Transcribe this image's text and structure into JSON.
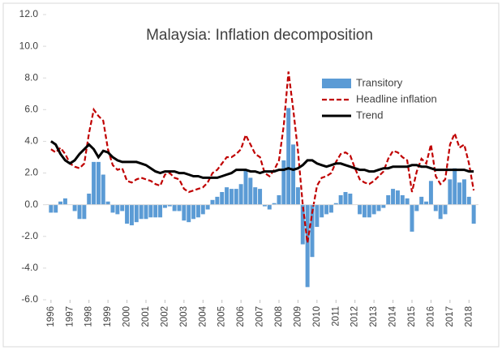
{
  "chart_data": {
    "type": "bar-line",
    "title": "Malaysia: Inflation decomposition",
    "x": [
      1996,
      1996.25,
      1996.5,
      1996.75,
      1997,
      1997.25,
      1997.5,
      1997.75,
      1998,
      1998.25,
      1998.5,
      1998.75,
      1999,
      1999.25,
      1999.5,
      1999.75,
      2000,
      2000.25,
      2000.5,
      2000.75,
      2001,
      2001.25,
      2001.5,
      2001.75,
      2002,
      2002.25,
      2002.5,
      2002.75,
      2003,
      2003.25,
      2003.5,
      2003.75,
      2004,
      2004.25,
      2004.5,
      2004.75,
      2005,
      2005.25,
      2005.5,
      2005.75,
      2006,
      2006.25,
      2006.5,
      2006.75,
      2007,
      2007.25,
      2007.5,
      2007.75,
      2008,
      2008.25,
      2008.5,
      2008.75,
      2009,
      2009.25,
      2009.5,
      2009.75,
      2010,
      2010.25,
      2010.5,
      2010.75,
      2011,
      2011.25,
      2011.5,
      2011.75,
      2012,
      2012.25,
      2012.5,
      2012.75,
      2013,
      2013.25,
      2013.5,
      2013.75,
      2014,
      2014.25,
      2014.5,
      2014.75,
      2015,
      2015.25,
      2015.5,
      2015.75,
      2016,
      2016.25,
      2016.5,
      2016.75,
      2017,
      2017.25,
      2017.5,
      2017.75,
      2018,
      2018.25
    ],
    "series": [
      {
        "name": "Transitory",
        "kind": "bar",
        "color": "#5b9bd5",
        "values": [
          -0.5,
          -0.5,
          0.2,
          0.4,
          0.0,
          -0.4,
          -0.9,
          -0.9,
          0.7,
          2.7,
          2.7,
          1.9,
          0.2,
          -0.5,
          -0.6,
          -0.4,
          -1.2,
          -1.3,
          -1.1,
          -0.9,
          -0.9,
          -0.8,
          -0.8,
          -0.8,
          -0.2,
          -0.1,
          -0.4,
          -0.4,
          -1.0,
          -1.1,
          -0.9,
          -0.8,
          -0.6,
          -0.3,
          0.3,
          0.5,
          0.8,
          1.1,
          1.0,
          1.0,
          1.3,
          2.2,
          1.7,
          1.1,
          1.0,
          -0.1,
          -0.3,
          0.1,
          0.6,
          2.8,
          6.1,
          3.8,
          1.1,
          -2.5,
          -5.2,
          -3.3,
          -1.4,
          -0.8,
          -0.6,
          -0.5,
          0.1,
          0.6,
          0.8,
          0.7,
          0.0,
          -0.6,
          -0.8,
          -0.8,
          -0.6,
          -0.4,
          -0.2,
          0.6,
          1.0,
          0.9,
          0.6,
          0.4,
          -1.7,
          -0.4,
          0.5,
          0.2,
          1.5,
          -0.4,
          -0.9,
          -0.6,
          1.6,
          2.3,
          1.4,
          1.6,
          0.5,
          -1.2
        ]
      },
      {
        "name": "Headline inflation",
        "kind": "dashed-line",
        "color": "#c00000",
        "values": [
          3.5,
          3.3,
          3.6,
          3.2,
          2.6,
          2.4,
          2.3,
          2.6,
          4.5,
          6.0,
          5.6,
          5.3,
          3.5,
          2.5,
          2.2,
          2.3,
          1.5,
          1.4,
          1.6,
          1.7,
          1.6,
          1.5,
          1.3,
          1.2,
          1.9,
          2.0,
          1.7,
          1.6,
          1.0,
          0.8,
          0.9,
          1.0,
          1.1,
          1.4,
          2.0,
          2.2,
          2.6,
          3.0,
          3.0,
          3.2,
          3.5,
          4.4,
          3.8,
          3.2,
          3.0,
          2.0,
          1.8,
          2.2,
          2.8,
          5.0,
          8.4,
          6.0,
          3.4,
          0.0,
          -2.4,
          -0.5,
          1.2,
          1.7,
          1.8,
          2.0,
          2.7,
          3.2,
          3.3,
          3.1,
          2.3,
          1.6,
          1.4,
          1.3,
          1.5,
          1.8,
          2.1,
          2.9,
          3.4,
          3.3,
          3.0,
          2.8,
          0.8,
          2.1,
          2.9,
          2.6,
          3.8,
          1.8,
          1.3,
          1.6,
          3.8,
          4.5,
          3.6,
          3.8,
          2.6,
          0.9
        ]
      },
      {
        "name": "Trend",
        "kind": "line",
        "color": "#000000",
        "values": [
          4.0,
          3.8,
          3.2,
          2.8,
          2.6,
          2.8,
          3.2,
          3.5,
          3.8,
          3.5,
          3.0,
          3.4,
          3.3,
          3.0,
          2.8,
          2.7,
          2.7,
          2.7,
          2.7,
          2.6,
          2.5,
          2.3,
          2.1,
          2.0,
          2.1,
          2.1,
          2.1,
          2.0,
          2.0,
          1.9,
          1.8,
          1.8,
          1.7,
          1.7,
          1.7,
          1.7,
          1.8,
          1.9,
          2.0,
          2.2,
          2.2,
          2.2,
          2.1,
          2.1,
          2.0,
          2.1,
          2.1,
          2.1,
          2.2,
          2.2,
          2.3,
          2.2,
          2.3,
          2.5,
          2.8,
          2.8,
          2.6,
          2.5,
          2.4,
          2.5,
          2.6,
          2.6,
          2.5,
          2.4,
          2.3,
          2.2,
          2.2,
          2.1,
          2.1,
          2.2,
          2.3,
          2.3,
          2.4,
          2.4,
          2.4,
          2.4,
          2.5,
          2.5,
          2.4,
          2.4,
          2.3,
          2.2,
          2.2,
          2.2,
          2.2,
          2.2,
          2.2,
          2.2,
          2.1,
          2.1
        ]
      }
    ],
    "xlim": [
      1995.75,
      2018.5
    ],
    "xticks": [
      1996,
      1997,
      1998,
      1999,
      2000,
      2001,
      2002,
      2003,
      2004,
      2005,
      2006,
      2007,
      2008,
      2009,
      2010,
      2011,
      2012,
      2013,
      2014,
      2015,
      2016,
      2017,
      2018
    ],
    "ylim": [
      -6,
      12
    ],
    "yticks": [
      {
        "value": -6,
        "label": "-6.0"
      },
      {
        "value": -4,
        "label": "-4.0"
      },
      {
        "value": -2,
        "label": "-2.0"
      },
      {
        "value": 0,
        "label": "0.0"
      },
      {
        "value": 2,
        "label": "2.0"
      },
      {
        "value": 4,
        "label": "4.0"
      },
      {
        "value": 6,
        "label": "6.0"
      },
      {
        "value": 8,
        "label": "8.0"
      },
      {
        "value": 10,
        "label": "10.0"
      },
      {
        "value": 12,
        "label": "12.0"
      }
    ],
    "grid": false,
    "legend": "upper right"
  }
}
